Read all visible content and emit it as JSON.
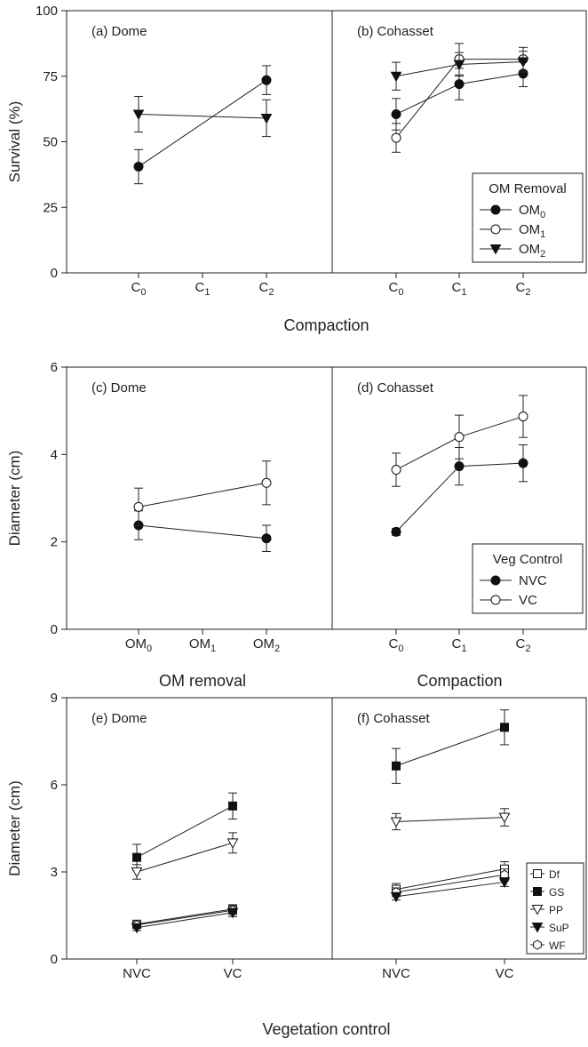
{
  "chart_data": [
    {
      "type": "line",
      "figure_row": 1,
      "ylabel": "Survival (%)",
      "xlabel": "Compaction",
      "ylim": [
        0,
        100
      ],
      "yticks": [
        0,
        25,
        50,
        75,
        100
      ],
      "legend": {
        "title": "OM Removal",
        "placement": "right panel, lower-right",
        "entries": [
          {
            "base": "OM",
            "sub": "0",
            "marker": "circle-filled"
          },
          {
            "base": "OM",
            "sub": "1",
            "marker": "circle-open"
          },
          {
            "base": "OM",
            "sub": "2",
            "marker": "triangle-down-filled"
          }
        ]
      },
      "panels": [
        {
          "label": "(a) Dome",
          "categories": [
            {
              "base": "C",
              "sub": "0"
            },
            {
              "base": "C",
              "sub": "1"
            },
            {
              "base": "C",
              "sub": "2"
            }
          ],
          "series": [
            {
              "marker": "circle-filled",
              "points": [
                {
                  "cat": 0,
                  "y": 40.5,
                  "err": 6.5
                },
                {
                  "cat": 2,
                  "y": 73.5,
                  "err": 5.5
                }
              ]
            },
            {
              "marker": "triangle-down-filled",
              "points": [
                {
                  "cat": 0,
                  "y": 60.5,
                  "err": 6.8
                },
                {
                  "cat": 2,
                  "y": 59,
                  "err": 7
                }
              ]
            }
          ]
        },
        {
          "label": "(b) Cohasset",
          "categories": [
            {
              "base": "C",
              "sub": "0"
            },
            {
              "base": "C",
              "sub": "1"
            },
            {
              "base": "C",
              "sub": "2"
            }
          ],
          "series": [
            {
              "marker": "circle-filled",
              "points": [
                {
                  "cat": 0,
                  "y": 60.5,
                  "err": 6
                },
                {
                  "cat": 1,
                  "y": 72,
                  "err": 6
                },
                {
                  "cat": 2,
                  "y": 76,
                  "err": 5
                }
              ]
            },
            {
              "marker": "circle-open",
              "points": [
                {
                  "cat": 0,
                  "y": 51.5,
                  "err": 5.5
                },
                {
                  "cat": 1,
                  "y": 81.5,
                  "err": 6
                },
                {
                  "cat": 2,
                  "y": 81.5,
                  "err": 4.5
                }
              ]
            },
            {
              "marker": "triangle-down-filled",
              "points": [
                {
                  "cat": 0,
                  "y": 75,
                  "err": 5.3
                },
                {
                  "cat": 1,
                  "y": 79.5,
                  "err": 4.5
                },
                {
                  "cat": 2,
                  "y": 80.5,
                  "err": 4
                }
              ]
            }
          ]
        }
      ]
    },
    {
      "type": "line",
      "figure_row": 2,
      "ylabel": "Diameter (cm)",
      "ylim": [
        0,
        6
      ],
      "yticks": [
        0,
        2,
        4,
        6
      ],
      "legend": {
        "title": "Veg Control",
        "placement": "right panel, lower-right",
        "entries": [
          {
            "base": "NVC",
            "sub": "",
            "marker": "circle-filled"
          },
          {
            "base": "VC",
            "sub": "",
            "marker": "circle-open"
          }
        ]
      },
      "panels": [
        {
          "label": "(c) Dome",
          "xlabel": "OM removal",
          "categories": [
            {
              "base": "OM",
              "sub": "0"
            },
            {
              "base": "OM",
              "sub": "1"
            },
            {
              "base": "OM",
              "sub": "2"
            }
          ],
          "series": [
            {
              "marker": "circle-filled",
              "points": [
                {
                  "cat": 0,
                  "y": 2.38,
                  "err": 0.33
                },
                {
                  "cat": 2,
                  "y": 2.08,
                  "err": 0.3
                }
              ]
            },
            {
              "marker": "circle-open",
              "points": [
                {
                  "cat": 0,
                  "y": 2.8,
                  "err": 0.43
                },
                {
                  "cat": 2,
                  "y": 3.35,
                  "err": 0.5
                }
              ]
            }
          ]
        },
        {
          "label": "(d) Cohasset",
          "xlabel": "Compaction",
          "categories": [
            {
              "base": "C",
              "sub": "0"
            },
            {
              "base": "C",
              "sub": "1"
            },
            {
              "base": "C",
              "sub": "2"
            }
          ],
          "series": [
            {
              "marker": "circle-filled",
              "points": [
                {
                  "cat": 0,
                  "y": 2.23,
                  "err": 0.08
                },
                {
                  "cat": 1,
                  "y": 3.73,
                  "err": 0.43
                },
                {
                  "cat": 2,
                  "y": 3.8,
                  "err": 0.42
                }
              ]
            },
            {
              "marker": "circle-open",
              "points": [
                {
                  "cat": 0,
                  "y": 3.65,
                  "err": 0.38
                },
                {
                  "cat": 1,
                  "y": 4.4,
                  "err": 0.5
                },
                {
                  "cat": 2,
                  "y": 4.87,
                  "err": 0.48
                }
              ]
            }
          ]
        }
      ]
    },
    {
      "type": "line",
      "figure_row": 3,
      "ylabel": "Diameter (cm)",
      "xlabel": "Vegetation control",
      "ylim": [
        0,
        9
      ],
      "yticks": [
        0,
        3,
        6,
        9
      ],
      "legend": {
        "title": "",
        "placement": "right panel, lower-right",
        "entries": [
          {
            "base": "Df",
            "sub": "",
            "marker": "square-open"
          },
          {
            "base": "GS",
            "sub": "",
            "marker": "square-filled"
          },
          {
            "base": "PP",
            "sub": "",
            "marker": "triangle-down-open"
          },
          {
            "base": "SuP",
            "sub": "",
            "marker": "triangle-down-filled"
          },
          {
            "base": "WF",
            "sub": "",
            "marker": "hexagon-open"
          }
        ]
      },
      "panels": [
        {
          "label": "(e) Dome",
          "categories": [
            {
              "base": "NVC",
              "sub": ""
            },
            {
              "base": "VC",
              "sub": ""
            }
          ],
          "series": [
            {
              "marker": "square-filled",
              "points": [
                {
                  "cat": 0,
                  "y": 3.5,
                  "err": 0.45
                },
                {
                  "cat": 1,
                  "y": 5.27,
                  "err": 0.45
                }
              ]
            },
            {
              "marker": "triangle-down-open",
              "points": [
                {
                  "cat": 0,
                  "y": 3.0,
                  "err": 0.25
                },
                {
                  "cat": 1,
                  "y": 4.0,
                  "err": 0.35
                }
              ]
            },
            {
              "marker": "square-open",
              "points": [
                {
                  "cat": 0,
                  "y": 1.2,
                  "err": 0.12
                },
                {
                  "cat": 1,
                  "y": 1.72,
                  "err": 0.15
                }
              ]
            },
            {
              "marker": "hexagon-open",
              "points": [
                {
                  "cat": 0,
                  "y": 1.17,
                  "err": 0.12
                },
                {
                  "cat": 1,
                  "y": 1.68,
                  "err": 0.15
                }
              ]
            },
            {
              "marker": "triangle-down-filled",
              "points": [
                {
                  "cat": 0,
                  "y": 1.08,
                  "err": 0.1
                },
                {
                  "cat": 1,
                  "y": 1.6,
                  "err": 0.14
                }
              ]
            }
          ]
        },
        {
          "label": "(f) Cohasset",
          "categories": [
            {
              "base": "NVC",
              "sub": ""
            },
            {
              "base": "VC",
              "sub": ""
            }
          ],
          "series": [
            {
              "marker": "square-filled",
              "points": [
                {
                  "cat": 0,
                  "y": 6.65,
                  "err": 0.6
                },
                {
                  "cat": 1,
                  "y": 7.98,
                  "err": 0.6
                }
              ]
            },
            {
              "marker": "triangle-down-open",
              "points": [
                {
                  "cat": 0,
                  "y": 4.73,
                  "err": 0.28
                },
                {
                  "cat": 1,
                  "y": 4.88,
                  "err": 0.3
                }
              ]
            },
            {
              "marker": "square-open",
              "points": [
                {
                  "cat": 0,
                  "y": 2.4,
                  "err": 0.2
                },
                {
                  "cat": 1,
                  "y": 3.1,
                  "err": 0.25
                }
              ]
            },
            {
              "marker": "hexagon-open",
              "points": [
                {
                  "cat": 0,
                  "y": 2.3,
                  "err": 0.15
                },
                {
                  "cat": 1,
                  "y": 2.9,
                  "err": 0.2
                }
              ]
            },
            {
              "marker": "triangle-down-filled",
              "points": [
                {
                  "cat": 0,
                  "y": 2.15,
                  "err": 0.12
                },
                {
                  "cat": 1,
                  "y": 2.65,
                  "err": 0.15
                }
              ]
            }
          ]
        }
      ]
    }
  ]
}
